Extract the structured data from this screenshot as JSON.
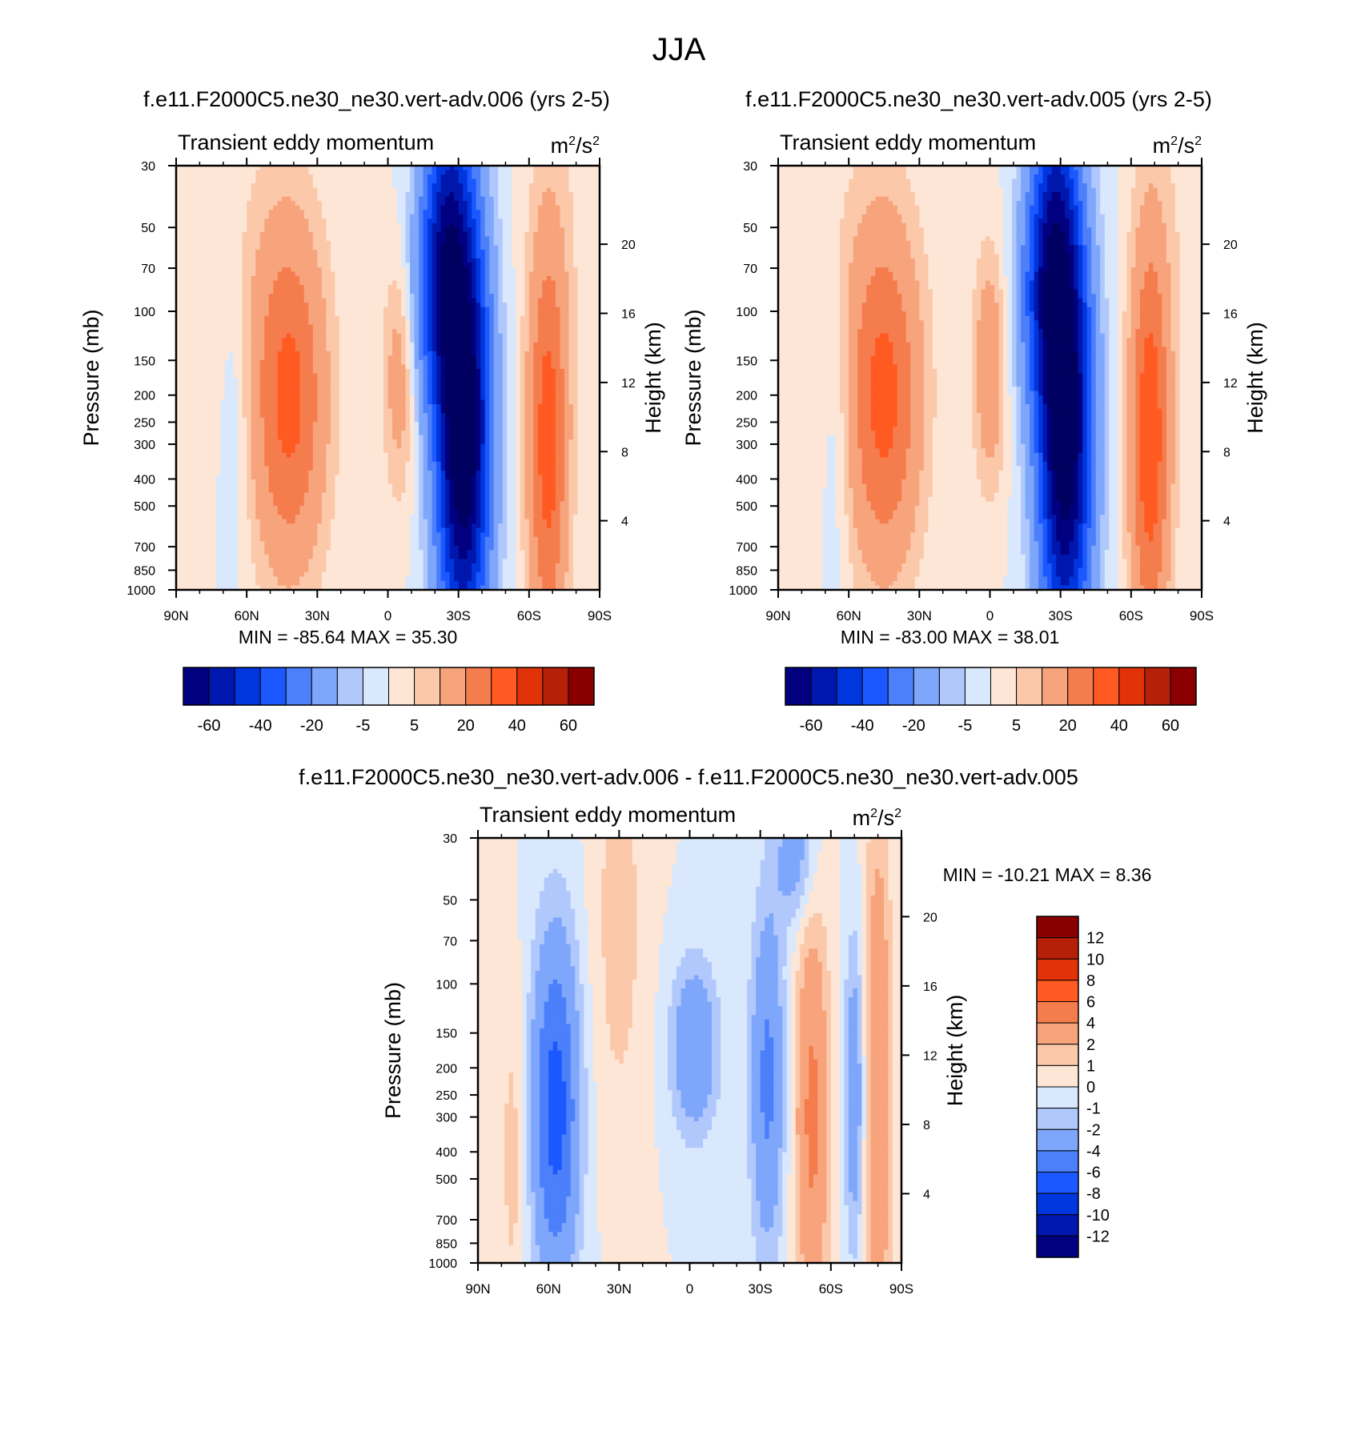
{
  "figure_title": "JJA",
  "chart_data": [
    {
      "type": "heatmap",
      "title": "f.e11.F2000C5.ne30_ne30.vert-adv.006 (yrs 2-5)",
      "subtitle": "Transient eddy momentum",
      "units": {
        "base": "m",
        "exp1": "2",
        "sep": "/s",
        "exp2": "2"
      },
      "xlabel": "",
      "ylabel": "Pressure (mb)",
      "ylabel_right": "Height (km)",
      "x_ticks": [
        "90N",
        "60N",
        "30N",
        "0",
        "30S",
        "60S",
        "90S"
      ],
      "x_values": [
        90,
        60,
        30,
        0,
        -30,
        -60,
        -90
      ],
      "y_ticks": [
        30,
        50,
        70,
        100,
        150,
        200,
        250,
        300,
        400,
        500,
        700,
        850,
        1000
      ],
      "ylim": [
        1000,
        30
      ],
      "height_ticks": [
        4,
        8,
        12,
        16,
        20
      ],
      "stats": "MIN = -85.64  MAX =  35.30",
      "min": -85.64,
      "max": 35.3,
      "levels": [
        -70,
        -60,
        -50,
        -40,
        -30,
        -20,
        -10,
        -5,
        0,
        5,
        10,
        20,
        30,
        40,
        50,
        60,
        70
      ],
      "colorbar_labels": [
        "-60",
        "-40",
        "-20",
        "-5",
        "5",
        "20",
        "40",
        "60"
      ],
      "features": [
        {
          "lat": -32,
          "p": 260,
          "value": -85.6,
          "sig_lat": 8,
          "sig_z": 1.3
        },
        {
          "lat": -25,
          "p": 40,
          "value": -30,
          "sig_lat": 7,
          "sig_z": 0.8
        },
        {
          "lat": -20,
          "p": 90,
          "value": -25,
          "sig_lat": 8,
          "sig_z": 0.7
        },
        {
          "lat": -68,
          "p": 300,
          "value": 35.3,
          "sig_lat": 6,
          "sig_z": 1.2
        },
        {
          "lat": 42,
          "p": 210,
          "value": 33,
          "sig_lat": 11,
          "sig_z": 1.0
        },
        {
          "lat": -5,
          "p": 170,
          "value": 16,
          "sig_lat": 5,
          "sig_z": 0.7
        },
        {
          "lat": 65,
          "p": 250,
          "value": -6,
          "sig_lat": 4,
          "sig_z": 0.9
        },
        {
          "lat": -75,
          "p": 40,
          "value": 3,
          "sig_lat": 12,
          "sig_z": 1.2
        },
        {
          "lat": 60,
          "p": 60,
          "value": 3,
          "sig_lat": 20,
          "sig_z": 1.0
        }
      ]
    },
    {
      "type": "heatmap",
      "title": "f.e11.F2000C5.ne30_ne30.vert-adv.005 (yrs 2-5)",
      "subtitle": "Transient eddy momentum",
      "units": {
        "base": "m",
        "exp1": "2",
        "sep": "/s",
        "exp2": "2"
      },
      "xlabel": "",
      "ylabel": "Pressure (mb)",
      "ylabel_right": "Height (km)",
      "x_ticks": [
        "90N",
        "60N",
        "30N",
        "0",
        "30S",
        "60S",
        "90S"
      ],
      "x_values": [
        90,
        60,
        30,
        0,
        -30,
        -60,
        -90
      ],
      "y_ticks": [
        30,
        50,
        70,
        100,
        150,
        200,
        250,
        300,
        400,
        500,
        700,
        850,
        1000
      ],
      "ylim": [
        1000,
        30
      ],
      "height_ticks": [
        4,
        8,
        12,
        16,
        20
      ],
      "stats": "MIN = -83.00  MAX =  38.01",
      "min": -83.0,
      "max": 38.01,
      "levels": [
        -70,
        -60,
        -50,
        -40,
        -30,
        -20,
        -10,
        -5,
        0,
        5,
        10,
        20,
        30,
        40,
        50,
        60,
        70
      ],
      "colorbar_labels": [
        "-60",
        "-40",
        "-20",
        "-5",
        "5",
        "20",
        "40",
        "60"
      ],
      "features": [
        {
          "lat": -32,
          "p": 260,
          "value": -83.0,
          "sig_lat": 8,
          "sig_z": 1.3
        },
        {
          "lat": -27,
          "p": 40,
          "value": -28,
          "sig_lat": 7,
          "sig_z": 0.8
        },
        {
          "lat": -22,
          "p": 90,
          "value": -24,
          "sig_lat": 8,
          "sig_z": 0.7
        },
        {
          "lat": -68,
          "p": 290,
          "value": 38.0,
          "sig_lat": 6,
          "sig_z": 1.2
        },
        {
          "lat": 45,
          "p": 210,
          "value": 33,
          "sig_lat": 11,
          "sig_z": 1.0
        },
        {
          "lat": 0,
          "p": 160,
          "value": 18,
          "sig_lat": 5,
          "sig_z": 0.7
        },
        {
          "lat": 65,
          "p": 270,
          "value": -6,
          "sig_lat": 4,
          "sig_z": 0.9
        },
        {
          "lat": -80,
          "p": 40,
          "value": 3,
          "sig_lat": 12,
          "sig_z": 1.2
        },
        {
          "lat": 60,
          "p": 60,
          "value": 3,
          "sig_lat": 20,
          "sig_z": 1.0
        }
      ]
    },
    {
      "type": "heatmap",
      "title": "f.e11.F2000C5.ne30_ne30.vert-adv.006 - f.e11.F2000C5.ne30_ne30.vert-adv.005",
      "subtitle": "Transient eddy momentum",
      "units": {
        "base": "m",
        "exp1": "2",
        "sep": "/s",
        "exp2": "2"
      },
      "xlabel": "",
      "ylabel": "Pressure (mb)",
      "ylabel_right": "Height (km)",
      "x_ticks": [
        "90N",
        "60N",
        "30N",
        "0",
        "30S",
        "60S",
        "90S"
      ],
      "x_values": [
        90,
        60,
        30,
        0,
        -30,
        -60,
        -90
      ],
      "y_ticks": [
        30,
        50,
        70,
        100,
        150,
        200,
        250,
        300,
        400,
        500,
        700,
        850,
        1000
      ],
      "ylim": [
        1000,
        30
      ],
      "height_ticks": [
        4,
        8,
        12,
        16,
        20
      ],
      "stats": "MIN = -10.21  MAX =   8.36",
      "min": -10.21,
      "max": 8.36,
      "levels": [
        -14,
        -12,
        -10,
        -8,
        -6,
        -4,
        -2,
        -1,
        0,
        1,
        2,
        4,
        6,
        8,
        10,
        12,
        14
      ],
      "colorbar_labels": [
        "12",
        "10",
        "8",
        "6",
        "4",
        "2",
        "1",
        "0",
        "-1",
        "-2",
        "-4",
        "-6",
        "-8",
        "-10",
        "-12"
      ],
      "features": [
        {
          "lat": 57,
          "p": 280,
          "value": -7,
          "sig_lat": 7,
          "sig_z": 1.0
        },
        {
          "lat": -2,
          "p": 170,
          "value": -4,
          "sig_lat": 7,
          "sig_z": 0.5
        },
        {
          "lat": -33,
          "p": 220,
          "value": -4.5,
          "sig_lat": 5,
          "sig_z": 1.0
        },
        {
          "lat": -70,
          "p": 250,
          "value": -3.5,
          "sig_lat": 3,
          "sig_z": 0.9
        },
        {
          "lat": -52,
          "p": 300,
          "value": 4.5,
          "sig_lat": 5,
          "sig_z": 1.2
        },
        {
          "lat": -80,
          "p": 250,
          "value": 4,
          "sig_lat": 4,
          "sig_z": 1.6
        },
        {
          "lat": 30,
          "p": 60,
          "value": 1.5,
          "sig_lat": 8,
          "sig_z": 1.3
        },
        {
          "lat": -45,
          "p": 35,
          "value": -3,
          "sig_lat": 6,
          "sig_z": 0.4
        },
        {
          "lat": 75,
          "p": 400,
          "value": 1.5,
          "sig_lat": 4,
          "sig_z": 1.0
        }
      ]
    }
  ],
  "colors": {
    "diverging": [
      "#000080",
      "#0017ad",
      "#0036de",
      "#1c58ff",
      "#4c7ffa",
      "#7ea7fc",
      "#b0c8fc",
      "#d9e8fc",
      "#fde6d6",
      "#fcc8aa",
      "#f7a47d",
      "#f57c4d",
      "#ff5a21",
      "#e1320a",
      "#b72008",
      "#8a0000"
    ],
    "fill_min": "#000060",
    "fill_max": "#6a0000",
    "axis": "#000000"
  }
}
